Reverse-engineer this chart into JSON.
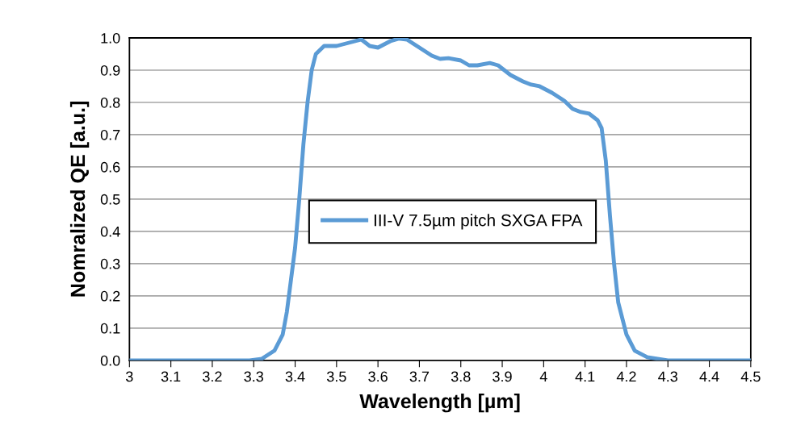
{
  "chart_data": {
    "type": "line",
    "xlabel": "Wavelength [µm]",
    "ylabel": "Nomralized QE [a.u.]",
    "x": [
      3.0,
      3.29,
      3.32,
      3.35,
      3.37,
      3.38,
      3.39,
      3.4,
      3.41,
      3.42,
      3.43,
      3.44,
      3.45,
      3.47,
      3.5,
      3.53,
      3.56,
      3.58,
      3.6,
      3.63,
      3.65,
      3.67,
      3.7,
      3.73,
      3.75,
      3.77,
      3.8,
      3.82,
      3.84,
      3.87,
      3.89,
      3.92,
      3.95,
      3.97,
      3.99,
      4.02,
      4.05,
      4.07,
      4.09,
      4.11,
      4.13,
      4.14,
      4.15,
      4.16,
      4.17,
      4.18,
      4.2,
      4.22,
      4.25,
      4.3,
      4.5
    ],
    "series": [
      {
        "name": "III-V 7.5µm pitch SXGA FPA",
        "color": "#5b9bd5",
        "values": [
          0,
          0,
          0.005,
          0.03,
          0.08,
          0.15,
          0.25,
          0.35,
          0.5,
          0.67,
          0.8,
          0.9,
          0.95,
          0.975,
          0.975,
          0.985,
          0.995,
          0.975,
          0.97,
          0.99,
          0.998,
          0.995,
          0.97,
          0.945,
          0.935,
          0.937,
          0.93,
          0.915,
          0.915,
          0.922,
          0.915,
          0.885,
          0.865,
          0.855,
          0.85,
          0.83,
          0.805,
          0.78,
          0.77,
          0.765,
          0.745,
          0.72,
          0.62,
          0.45,
          0.3,
          0.18,
          0.08,
          0.03,
          0.01,
          0,
          0
        ]
      }
    ],
    "xlim": [
      3,
      4.5
    ],
    "xticks": [
      3,
      3.1,
      3.2,
      3.3,
      3.4,
      3.5,
      3.6,
      3.7,
      3.8,
      3.9,
      4,
      4.1,
      4.2,
      4.3,
      4.4,
      4.5
    ],
    "ylim": [
      0,
      1
    ],
    "yticks": [
      {
        "value": 0,
        "label": "0.0"
      },
      {
        "value": 0.1,
        "label": "0.1"
      },
      {
        "value": 0.2,
        "label": "0.2"
      },
      {
        "value": 0.3,
        "label": "0.3"
      },
      {
        "value": 0.4,
        "label": "0.4"
      },
      {
        "value": 0.5,
        "label": "0.5"
      },
      {
        "value": 0.6,
        "label": "0.6"
      },
      {
        "value": 0.7,
        "label": "0.7"
      },
      {
        "value": 0.8,
        "label": "0.8"
      },
      {
        "value": 0.9,
        "label": "0.9"
      },
      {
        "value": 1,
        "label": "1.0"
      }
    ],
    "grid": "y",
    "legend": "center",
    "marker": "none",
    "line_style": "solid"
  }
}
